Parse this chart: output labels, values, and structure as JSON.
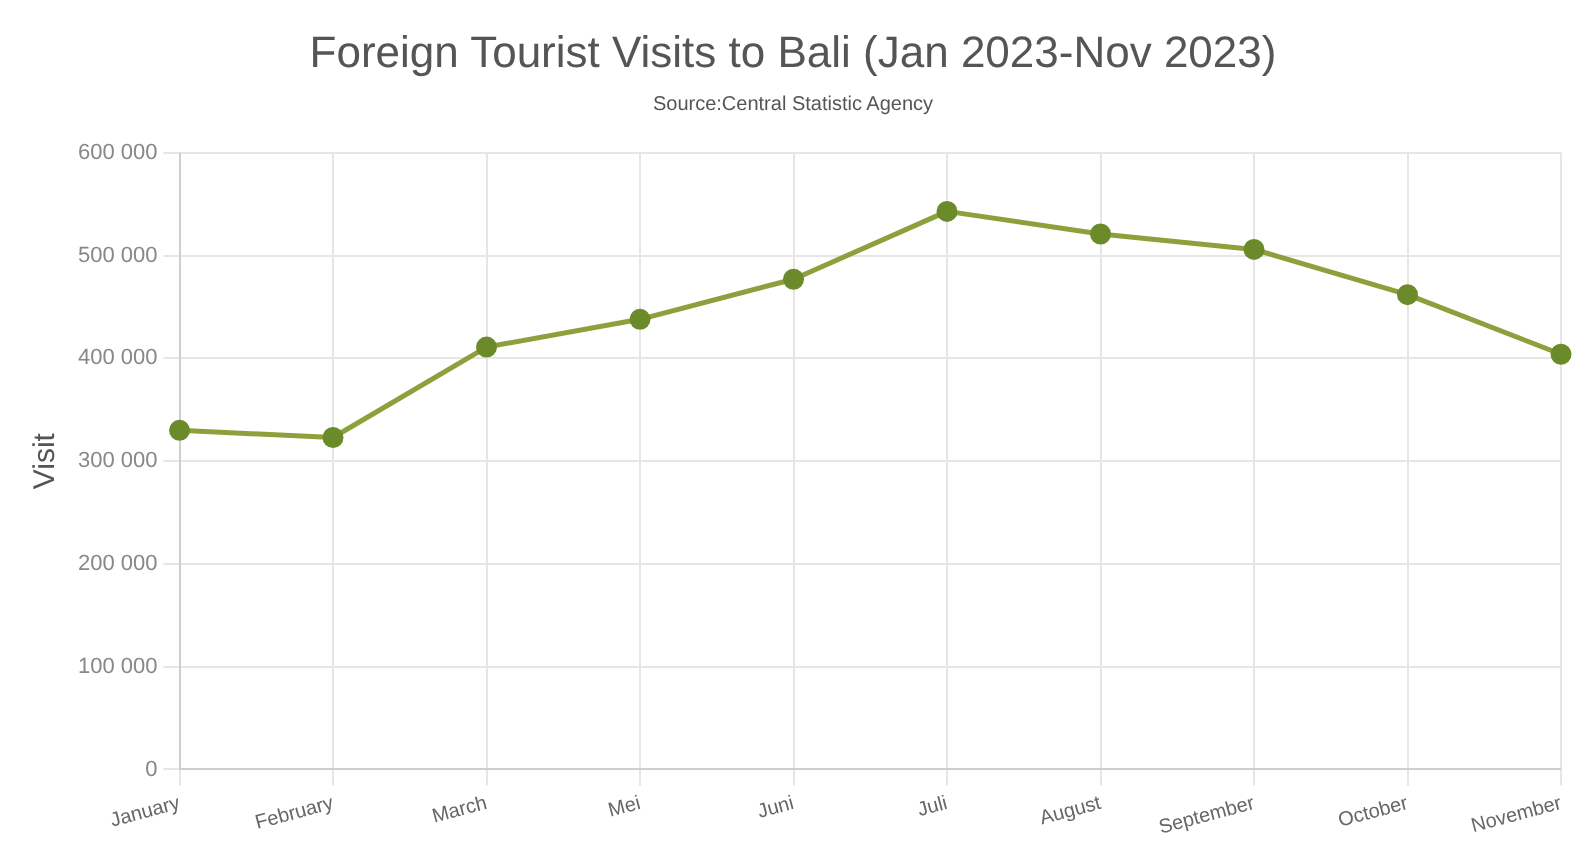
{
  "chart_data": {
    "type": "line",
    "title": "Foreign Tourist Visits to Bali (Jan 2023-Nov 2023)",
    "subtitle": "Source:Central Statistic Agency",
    "ylabel": "Visit",
    "categories": [
      "January",
      "February",
      "March",
      "Mei",
      "Juni",
      "Juli",
      "August",
      "September",
      "October",
      "November"
    ],
    "series": [
      {
        "color": "#8ca03c",
        "values": [
          330000,
          323000,
          411000,
          438000,
          477000,
          543000,
          521000,
          506000,
          462000,
          404000
        ]
      }
    ],
    "ylim": [
      0,
      600000
    ],
    "yticks": [
      {
        "value": 0,
        "label": "0"
      },
      {
        "value": 100000,
        "label": "100 000"
      },
      {
        "value": 200000,
        "label": "200 000"
      },
      {
        "value": 300000,
        "label": "300 000"
      },
      {
        "value": 400000,
        "label": "400 000"
      },
      {
        "value": 500000,
        "label": "500 000"
      },
      {
        "value": 600000,
        "label": "600 000"
      }
    ],
    "grid": true,
    "marker": "circle",
    "line_style": "solid"
  }
}
